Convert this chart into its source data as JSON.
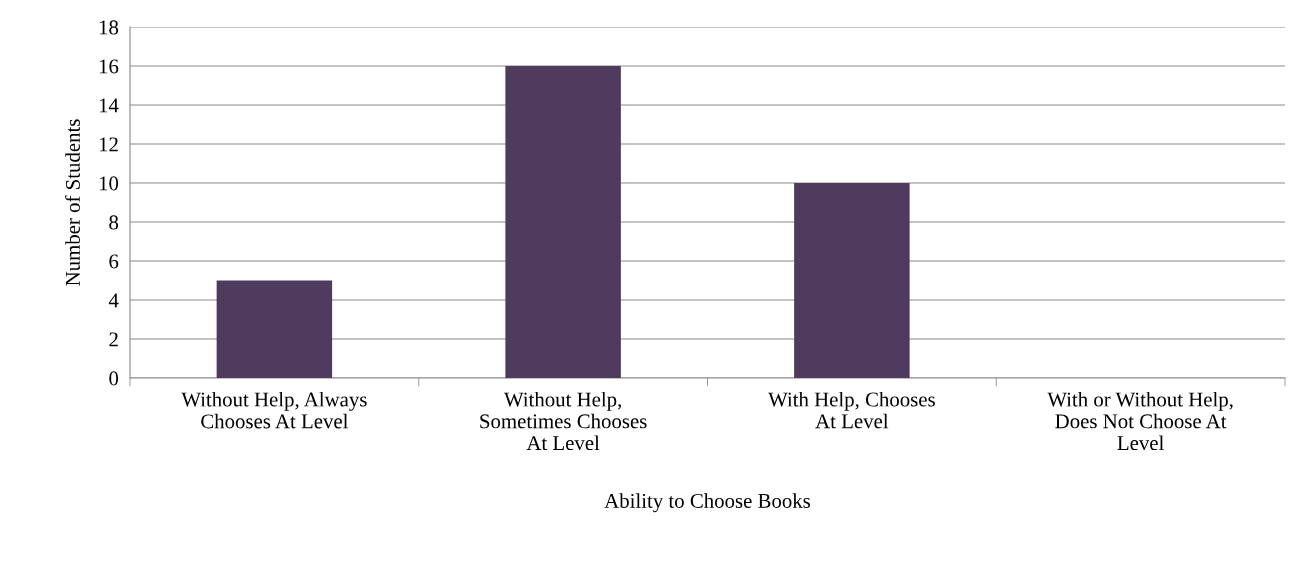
{
  "chart_data": {
    "type": "bar",
    "xlabel": "Ability to Choose Books",
    "ylabel": "Number of Students",
    "categories": [
      "Without Help, Always\nChooses At Level",
      "Without Help,\nSometimes Chooses\nAt Level",
      "With Help, Chooses\nAt Level",
      "With or Without Help,\nDoes Not Choose At\nLevel"
    ],
    "values": [
      5,
      16,
      10,
      0
    ],
    "color": "#4e3b5e",
    "ylim": [
      0,
      18
    ],
    "yticks": [
      0,
      2,
      4,
      6,
      8,
      10,
      12,
      14,
      16,
      18
    ],
    "grid": "y"
  }
}
